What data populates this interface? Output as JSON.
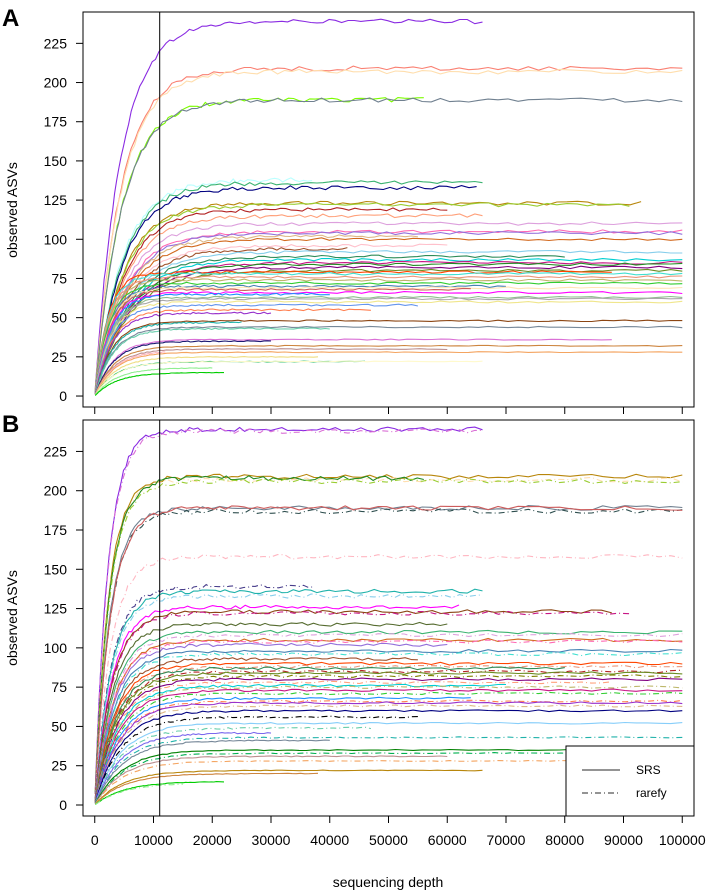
{
  "figure": {
    "xlabel": "sequencing depth",
    "ylabel": "observed ASVs"
  },
  "legend": {
    "items": [
      {
        "label": "SRS",
        "line": "solid",
        "color": "#555555"
      },
      {
        "label": "rarefy",
        "line": "dashdot",
        "color": "#555555"
      }
    ],
    "placement": "bottom-right of panel B"
  },
  "chart_data": [
    {
      "panel": "A",
      "type": "line",
      "xlabel": "",
      "ylabel": "observed ASVs",
      "xlim": [
        -2000,
        102000
      ],
      "ylim": [
        -7,
        245
      ],
      "xticks": [
        0,
        10000,
        20000,
        30000,
        40000,
        50000,
        60000,
        70000,
        80000,
        90000,
        100000
      ],
      "yticks": [
        0,
        25,
        50,
        75,
        100,
        125,
        150,
        175,
        200,
        225
      ],
      "ytick_labels": [
        "0",
        "25",
        "50",
        "75",
        "100",
        "125",
        "150",
        "175",
        "200",
        "225"
      ],
      "vline_x": 10000,
      "grid": false,
      "series": [
        {
          "style": "solid",
          "color": "#8a2be2",
          "plateau": 239,
          "max_x": 66000
        },
        {
          "style": "solid",
          "color": "#fa8072",
          "plateau": 209,
          "max_x": 100000
        },
        {
          "style": "solid",
          "color": "#ffdead",
          "plateau": 207,
          "max_x": 100000
        },
        {
          "style": "solid",
          "color": "#7cfc00",
          "plateau": 189,
          "max_x": 56000
        },
        {
          "style": "solid",
          "color": "#708090",
          "plateau": 189,
          "max_x": 100000
        },
        {
          "style": "solid",
          "color": "#bbffff",
          "plateau": 138,
          "max_x": 37000
        },
        {
          "style": "solid",
          "color": "#3cb371",
          "plateau": 136,
          "max_x": 66000
        },
        {
          "style": "solid",
          "color": "#000080",
          "plateau": 133,
          "max_x": 65000
        },
        {
          "style": "solid",
          "color": "#b8860b",
          "plateau": 123,
          "max_x": 93000
        },
        {
          "style": "solid",
          "color": "#9acd32",
          "plateau": 122,
          "max_x": 91000
        },
        {
          "style": "solid",
          "color": "#b22222",
          "plateau": 119,
          "max_x": 60000
        },
        {
          "style": "solid",
          "color": "#ffa07a",
          "plateau": 115,
          "max_x": 66000
        },
        {
          "style": "solid",
          "color": "#dda0dd",
          "plateau": 110,
          "max_x": 100000
        },
        {
          "style": "solid",
          "color": "#ff69b4",
          "plateau": 105,
          "max_x": 100000
        },
        {
          "style": "solid",
          "color": "#9370db",
          "plateau": 104,
          "max_x": 100000
        },
        {
          "style": "solid",
          "color": "#deb887",
          "plateau": 102,
          "max_x": 55000
        },
        {
          "style": "solid",
          "color": "#d2691e",
          "plateau": 100,
          "max_x": 100000
        },
        {
          "style": "solid",
          "color": "#ffc0cb",
          "plateau": 96,
          "max_x": 60000
        },
        {
          "style": "solid",
          "color": "#a0522d",
          "plateau": 94,
          "max_x": 43000
        },
        {
          "style": "solid",
          "color": "#87ceeb",
          "plateau": 92,
          "max_x": 100000
        },
        {
          "style": "solid",
          "color": "#2e8b57",
          "plateau": 89,
          "max_x": 80000
        },
        {
          "style": "solid",
          "color": "#00ced1",
          "plateau": 87,
          "max_x": 100000
        },
        {
          "style": "solid",
          "color": "#c71585",
          "plateau": 85,
          "max_x": 100000
        },
        {
          "style": "solid",
          "color": "#228b22",
          "plateau": 84,
          "max_x": 100000
        },
        {
          "style": "solid",
          "color": "#800080",
          "plateau": 82,
          "max_x": 100000
        },
        {
          "style": "solid",
          "color": "#6b8e23",
          "plateau": 80,
          "max_x": 100000
        },
        {
          "style": "solid",
          "color": "#ff4500",
          "plateau": 79,
          "max_x": 88000
        },
        {
          "style": "solid",
          "color": "#40e0d0",
          "plateau": 78,
          "max_x": 100000
        },
        {
          "style": "solid",
          "color": "#e9967a",
          "plateau": 76,
          "max_x": 100000
        },
        {
          "style": "solid",
          "color": "#bdb76b",
          "plateau": 74,
          "max_x": 100000
        },
        {
          "style": "solid",
          "color": "#32cd32",
          "plateau": 72,
          "max_x": 100000
        },
        {
          "style": "solid",
          "color": "#4682b4",
          "plateau": 70,
          "max_x": 70000
        },
        {
          "style": "solid",
          "color": "#ffe4b5",
          "plateau": 69,
          "max_x": 100000
        },
        {
          "style": "solid",
          "color": "#cd5c5c",
          "plateau": 68,
          "max_x": 64000
        },
        {
          "style": "solid",
          "color": "#ff00ff",
          "plateau": 66,
          "max_x": 100000
        },
        {
          "style": "solid",
          "color": "#1e90ff",
          "plateau": 65,
          "max_x": 40000
        },
        {
          "style": "solid",
          "color": "#8fbc8f",
          "plateau": 63,
          "max_x": 100000
        },
        {
          "style": "solid",
          "color": "#a9a9a9",
          "plateau": 62,
          "max_x": 100000
        },
        {
          "style": "solid",
          "color": "#f0e68c",
          "plateau": 60,
          "max_x": 100000
        },
        {
          "style": "solid",
          "color": "#6495ed",
          "plateau": 58,
          "max_x": 55000
        },
        {
          "style": "solid",
          "color": "#ff7f50",
          "plateau": 55,
          "max_x": 47000
        },
        {
          "style": "solid",
          "color": "#9932cc",
          "plateau": 53,
          "max_x": 30000
        },
        {
          "style": "solid",
          "color": "#8b4513",
          "plateau": 48,
          "max_x": 100000
        },
        {
          "style": "solid",
          "color": "#20b2aa",
          "plateau": 47,
          "max_x": 25000
        },
        {
          "style": "solid",
          "color": "#778899",
          "plateau": 44,
          "max_x": 100000
        },
        {
          "style": "solid",
          "color": "#66cdaa",
          "plateau": 43,
          "max_x": 40000
        },
        {
          "style": "solid",
          "color": "#da70d6",
          "plateau": 36,
          "max_x": 88000
        },
        {
          "style": "solid",
          "color": "#191970",
          "plateau": 35,
          "max_x": 30000
        },
        {
          "style": "solid",
          "color": "#cd853f",
          "plateau": 32,
          "max_x": 100000
        },
        {
          "style": "solid",
          "color": "#bc8f8f",
          "plateau": 30,
          "max_x": 60000
        },
        {
          "style": "solid",
          "color": "#ffb6c1",
          "plateau": 29,
          "max_x": 12000
        },
        {
          "style": "solid",
          "color": "#f4a460",
          "plateau": 28,
          "max_x": 100000
        },
        {
          "style": "solid",
          "color": "#eedd82",
          "plateau": 25,
          "max_x": 38000
        },
        {
          "style": "solid",
          "color": "#00b050",
          "plateau": 22,
          "max_x": 46000
        },
        {
          "style": "solid",
          "color": "#fffacd",
          "plateau": 22,
          "max_x": 66000
        },
        {
          "style": "solid",
          "color": "#90ee90",
          "plateau": 18,
          "max_x": 20000
        },
        {
          "style": "solid",
          "color": "#00cd00",
          "plateau": 15,
          "max_x": 22000
        }
      ]
    },
    {
      "panel": "B",
      "type": "line",
      "xlabel": "sequencing depth",
      "ylabel": "observed ASVs",
      "xlim": [
        -2000,
        102000
      ],
      "ylim": [
        -7,
        245
      ],
      "xticks": [
        0,
        10000,
        20000,
        30000,
        40000,
        50000,
        60000,
        70000,
        80000,
        90000,
        100000
      ],
      "xtick_labels": [
        "0",
        "10000",
        "20000",
        "30000",
        "40000",
        "50000",
        "60000",
        "70000",
        "80000",
        "90000",
        "100000"
      ],
      "yticks": [
        0,
        25,
        50,
        75,
        100,
        125,
        150,
        175,
        200,
        225
      ],
      "ytick_labels": [
        "0",
        "25",
        "50",
        "75",
        "100",
        "125",
        "150",
        "175",
        "200",
        "225"
      ],
      "vline_x": 10000,
      "grid": false,
      "series": [
        {
          "style": "solid",
          "color": "#8a2be2",
          "plateau": 239,
          "max_x": 66000
        },
        {
          "style": "dashdot",
          "color": "#da70d6",
          "plateau": 238,
          "max_x": 66000
        },
        {
          "style": "solid",
          "color": "#b8860b",
          "plateau": 209,
          "max_x": 100000
        },
        {
          "style": "dashdot",
          "color": "#ffdead",
          "plateau": 207,
          "max_x": 100000
        },
        {
          "style": "solid",
          "color": "#228b22",
          "plateau": 208,
          "max_x": 56000
        },
        {
          "style": "dashdot",
          "color": "#9acd32",
          "plateau": 206,
          "max_x": 100000
        },
        {
          "style": "solid",
          "color": "#708090",
          "plateau": 189,
          "max_x": 100000
        },
        {
          "style": "dashdot",
          "color": "#2f4f4f",
          "plateau": 187,
          "max_x": 100000
        },
        {
          "style": "solid",
          "color": "#cd5c5c",
          "plateau": 189,
          "max_x": 100000
        },
        {
          "style": "dashdot",
          "color": "#ffb6c1",
          "plateau": 158,
          "max_x": 100000
        },
        {
          "style": "dashdot",
          "color": "#483d8b",
          "plateau": 139,
          "max_x": 37000
        },
        {
          "style": "solid",
          "color": "#20b2aa",
          "plateau": 136,
          "max_x": 66000
        },
        {
          "style": "dashdot",
          "color": "#87ceeb",
          "plateau": 133,
          "max_x": 66000
        },
        {
          "style": "solid",
          "color": "#ff00ff",
          "plateau": 126,
          "max_x": 62000
        },
        {
          "style": "solid",
          "color": "#8b4513",
          "plateau": 123,
          "max_x": 88000
        },
        {
          "style": "dashdot",
          "color": "#c71585",
          "plateau": 122,
          "max_x": 91000
        },
        {
          "style": "solid",
          "color": "#556b2f",
          "plateau": 115,
          "max_x": 60000
        },
        {
          "style": "solid",
          "color": "#3cb371",
          "plateau": 110,
          "max_x": 100000
        },
        {
          "style": "dashdot",
          "color": "#dda0dd",
          "plateau": 108,
          "max_x": 100000
        },
        {
          "style": "solid",
          "color": "#d2691e",
          "plateau": 105,
          "max_x": 100000
        },
        {
          "style": "dashdot",
          "color": "#ff69b4",
          "plateau": 104,
          "max_x": 100000
        },
        {
          "style": "solid",
          "color": "#9370db",
          "plateau": 102,
          "max_x": 60000
        },
        {
          "style": "solid",
          "color": "#4682b4",
          "plateau": 98,
          "max_x": 100000
        },
        {
          "style": "dashdot",
          "color": "#40e0d0",
          "plateau": 96,
          "max_x": 100000
        },
        {
          "style": "solid",
          "color": "#a0522d",
          "plateau": 93,
          "max_x": 55000
        },
        {
          "style": "solid",
          "color": "#ff4500",
          "plateau": 90,
          "max_x": 100000
        },
        {
          "style": "dashdot",
          "color": "#e9967a",
          "plateau": 88,
          "max_x": 100000
        },
        {
          "style": "solid",
          "color": "#2e8b57",
          "plateau": 87,
          "max_x": 80000
        },
        {
          "style": "dashdot",
          "color": "#b22222",
          "plateau": 85,
          "max_x": 100000
        },
        {
          "style": "solid",
          "color": "#6b8e23",
          "plateau": 84,
          "max_x": 100000
        },
        {
          "style": "dashdot",
          "color": "#808000",
          "plateau": 82,
          "max_x": 100000
        },
        {
          "style": "solid",
          "color": "#800080",
          "plateau": 80,
          "max_x": 100000
        },
        {
          "style": "dashdot",
          "color": "#ffa07a",
          "plateau": 78,
          "max_x": 88000
        },
        {
          "style": "solid",
          "color": "#00ced1",
          "plateau": 76,
          "max_x": 70000
        },
        {
          "style": "dashdot",
          "color": "#bdb76b",
          "plateau": 75,
          "max_x": 100000
        },
        {
          "style": "solid",
          "color": "#c71585",
          "plateau": 73,
          "max_x": 100000
        },
        {
          "style": "dashdot",
          "color": "#32cd32",
          "plateau": 71,
          "max_x": 100000
        },
        {
          "style": "solid",
          "color": "#1e90ff",
          "plateau": 68,
          "max_x": 64000
        },
        {
          "style": "dashdot",
          "color": "#ff7f50",
          "plateau": 66,
          "max_x": 100000
        },
        {
          "style": "solid",
          "color": "#9932cc",
          "plateau": 65,
          "max_x": 100000
        },
        {
          "style": "dashdot",
          "color": "#deb887",
          "plateau": 63,
          "max_x": 100000
        },
        {
          "style": "solid",
          "color": "#000080",
          "plateau": 60,
          "max_x": 100000
        },
        {
          "style": "dashdot",
          "color": "#000000",
          "plateau": 56,
          "max_x": 55000
        },
        {
          "style": "solid",
          "color": "#87cefa",
          "plateau": 52,
          "max_x": 100000
        },
        {
          "style": "dashdot",
          "color": "#66cdaa",
          "plateau": 49,
          "max_x": 47000
        },
        {
          "style": "solid",
          "color": "#7b68ee",
          "plateau": 46,
          "max_x": 30000
        },
        {
          "style": "dashdot",
          "color": "#20b2aa",
          "plateau": 43,
          "max_x": 100000
        },
        {
          "style": "solid",
          "color": "#778899",
          "plateau": 41,
          "max_x": 40000
        },
        {
          "style": "solid",
          "color": "#008000",
          "plateau": 35,
          "max_x": 100000
        },
        {
          "style": "dashdot",
          "color": "#00b050",
          "plateau": 33,
          "max_x": 88000
        },
        {
          "style": "solid",
          "color": "#bc8f8f",
          "plateau": 31,
          "max_x": 60000
        },
        {
          "style": "dashdot",
          "color": "#f4a460",
          "plateau": 28,
          "max_x": 100000
        },
        {
          "style": "solid",
          "color": "#b8860b",
          "plateau": 22,
          "max_x": 66000
        },
        {
          "style": "solid",
          "color": "#cd853f",
          "plateau": 20,
          "max_x": 38000
        },
        {
          "style": "solid",
          "color": "#00cd00",
          "plateau": 15,
          "max_x": 22000
        },
        {
          "style": "dashdot",
          "color": "#90ee90",
          "plateau": 14,
          "max_x": 15000
        }
      ]
    }
  ]
}
